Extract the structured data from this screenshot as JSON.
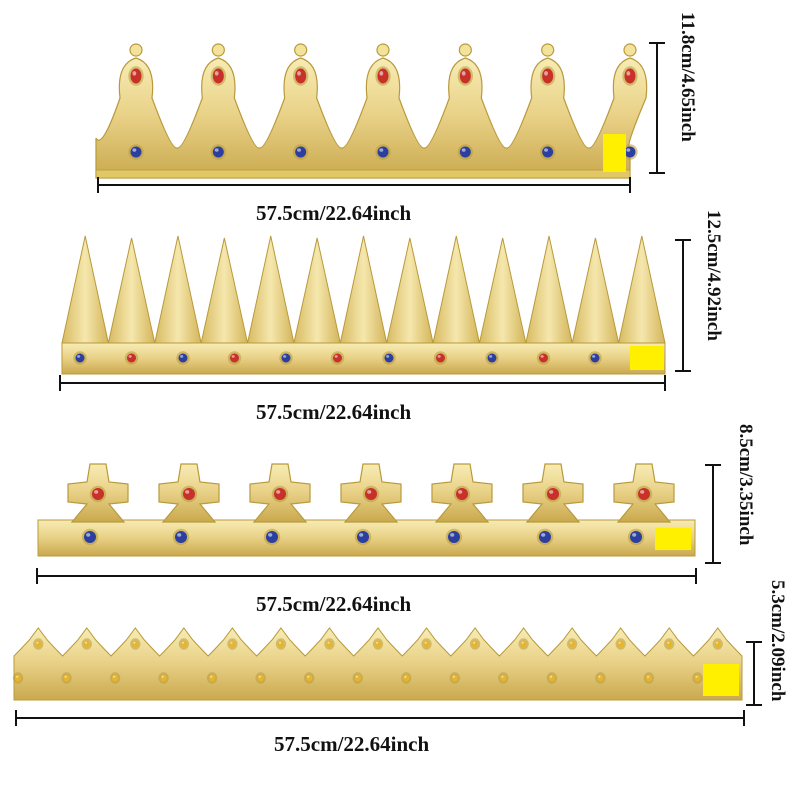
{
  "crowns": [
    {
      "name": "jeweled-arch-crown",
      "width_label": "57.5cm/22.64inch",
      "height_label": "11.8cm/4.65inch"
    },
    {
      "name": "spiked-crown",
      "width_label": "57.5cm/22.64inch",
      "height_label": "12.5cm/4.92inch"
    },
    {
      "name": "cross-crown",
      "width_label": "57.5cm/22.64inch",
      "height_label": "8.5cm/3.35inch"
    },
    {
      "name": "small-point-crown",
      "width_label": "57.5cm/22.64inch",
      "height_label": "5.3cm/2.09inch"
    }
  ],
  "colors": {
    "gold_light": "#f3e39a",
    "gold": "#e2c766",
    "gold_dark": "#b89a3c",
    "jewel_red": "#c8302a",
    "jewel_blue": "#2c3f9e",
    "jewel_yellow": "#e8b52a",
    "tab_yellow": "#fff000",
    "measure_line": "#111111"
  }
}
